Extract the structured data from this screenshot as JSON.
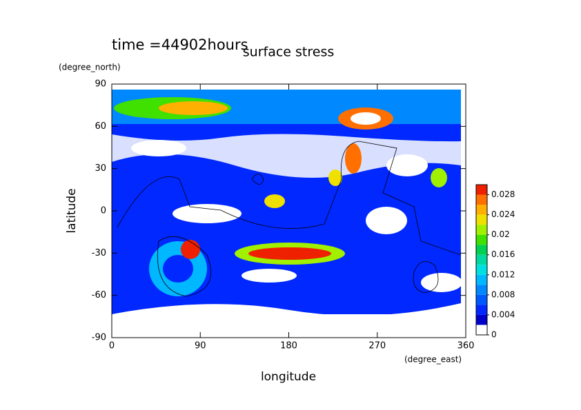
{
  "chart_data": {
    "type": "contour",
    "title": "time =44902hours",
    "subtitle": "surface stress",
    "xlabel": "longitude",
    "ylabel": "latitude",
    "xunit": "(degree_east)",
    "yunit": "(degree_north)",
    "xlim": [
      0,
      360
    ],
    "ylim": [
      -90,
      90
    ],
    "xticks": [
      0,
      90,
      180,
      270,
      360
    ],
    "yticks": [
      -90,
      -60,
      -30,
      0,
      30,
      60,
      90
    ],
    "colorbar": {
      "lim": [
        0,
        0.03
      ],
      "ticks": [
        0,
        0.004,
        0.008,
        0.012,
        0.016,
        0.02,
        0.024,
        0.028
      ],
      "colors": [
        "#ffffff",
        "#0000c8",
        "#0028ff",
        "#0058ff",
        "#0088ff",
        "#00b8ff",
        "#00e0e0",
        "#00d8a0",
        "#00d050",
        "#40e000",
        "#a0f000",
        "#f0e000",
        "#ffb000",
        "#ff7000",
        "#ee2000"
      ]
    }
  }
}
